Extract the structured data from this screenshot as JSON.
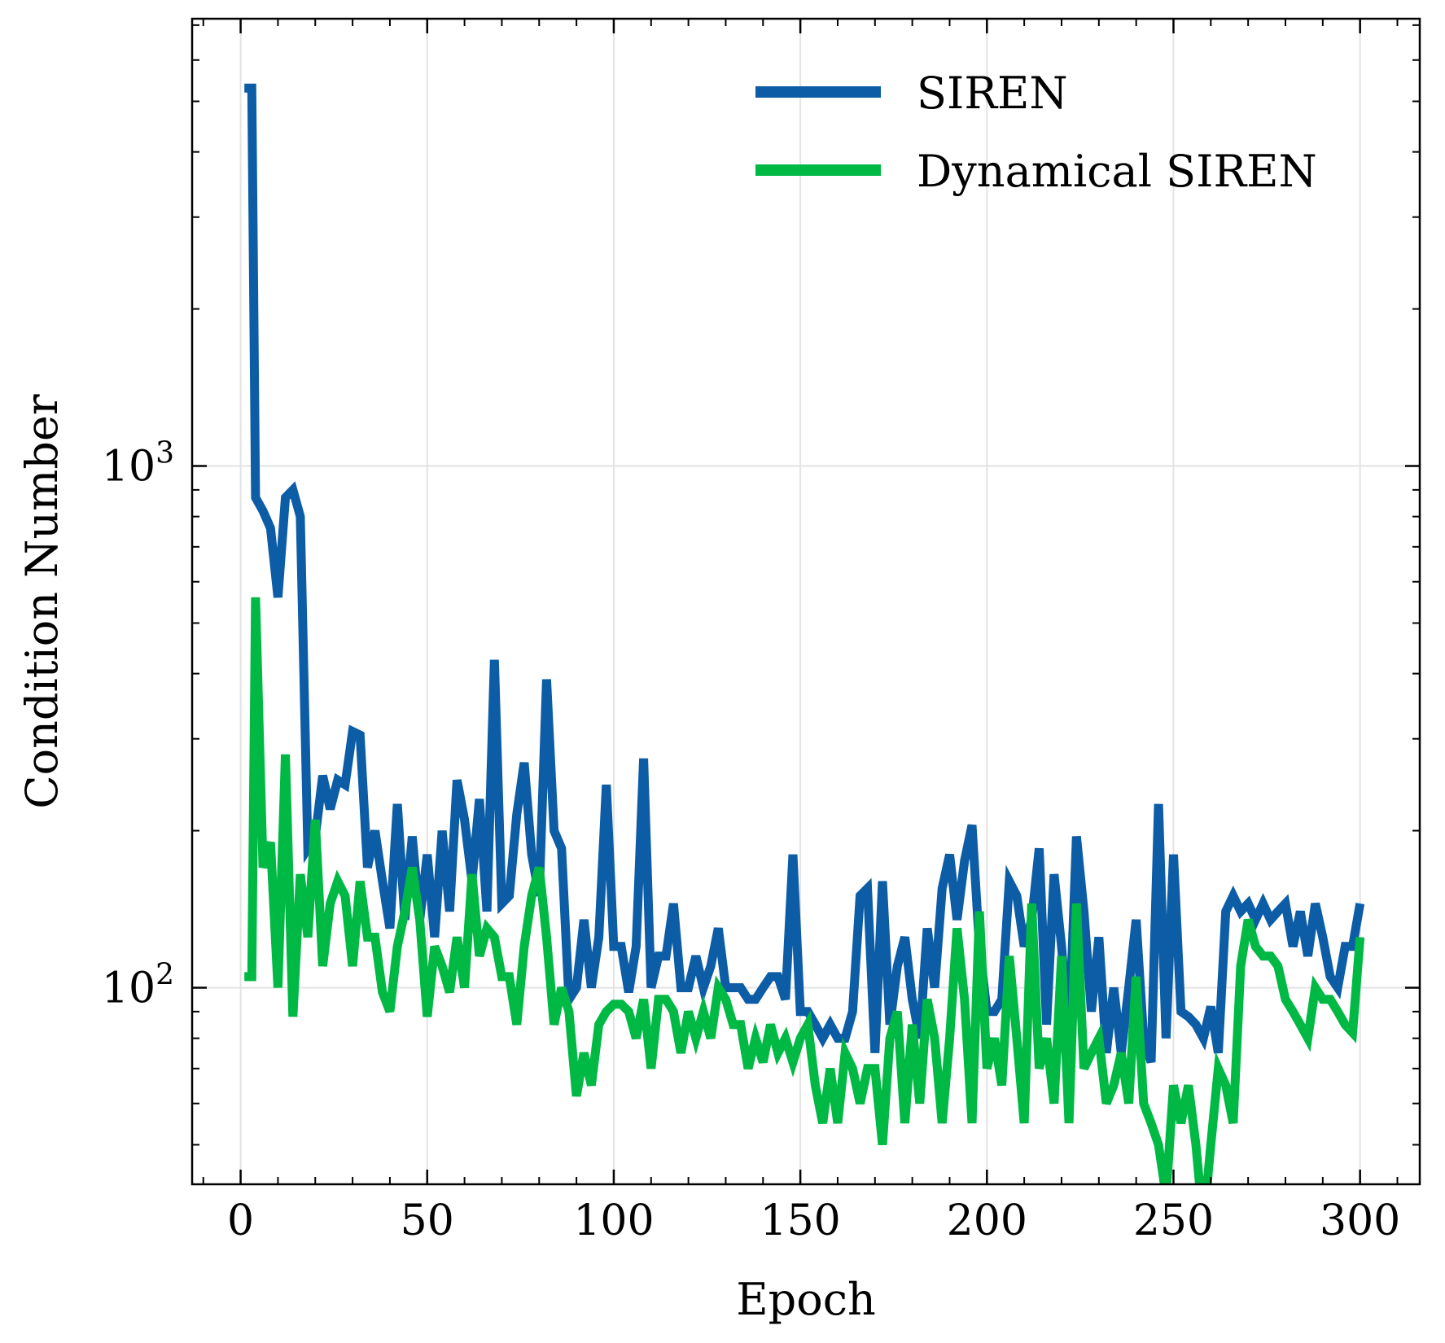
{
  "chart_data": {
    "type": "line",
    "title": "",
    "xlabel": "Epoch",
    "ylabel": "Condition Number",
    "yscale": "log",
    "xlim": [
      -13,
      316
    ],
    "ylim": [
      42,
      7200
    ],
    "grid": true,
    "legend_position": "top-right",
    "x_ticks": [
      0,
      50,
      100,
      150,
      200,
      250,
      300
    ],
    "x_tick_labels": [
      "0",
      "50",
      "100",
      "150",
      "200",
      "250",
      "300"
    ],
    "y_ticks": [
      100,
      1000
    ],
    "y_tick_labels": [
      {
        "base": "10",
        "exp": "2"
      },
      {
        "base": "10",
        "exp": "3"
      }
    ],
    "series": [
      {
        "name": "SIREN",
        "color": "#0c5da5",
        "x": [
          1,
          3,
          4,
          6,
          8,
          10,
          12,
          14,
          16,
          18,
          20,
          22,
          24,
          26,
          28,
          30,
          32,
          34,
          36,
          38,
          40,
          42,
          44,
          46,
          48,
          50,
          52,
          54,
          56,
          58,
          60,
          62,
          64,
          66,
          68,
          70,
          72,
          74,
          76,
          78,
          80,
          82,
          84,
          86,
          88,
          90,
          92,
          94,
          96,
          98,
          100,
          102,
          104,
          106,
          108,
          110,
          112,
          114,
          116,
          118,
          120,
          122,
          124,
          126,
          128,
          130,
          132,
          134,
          136,
          138,
          140,
          142,
          144,
          146,
          148,
          150,
          152,
          154,
          156,
          158,
          160,
          162,
          164,
          166,
          168,
          170,
          172,
          174,
          176,
          178,
          180,
          182,
          184,
          186,
          188,
          190,
          192,
          194,
          196,
          198,
          200,
          202,
          204,
          206,
          208,
          210,
          212,
          214,
          216,
          218,
          220,
          222,
          224,
          226,
          228,
          230,
          232,
          234,
          236,
          238,
          240,
          242,
          244,
          246,
          248,
          250,
          252,
          254,
          256,
          258,
          260,
          262,
          264,
          266,
          268,
          270,
          272,
          274,
          276,
          278,
          280,
          282,
          284,
          286,
          288,
          290,
          292,
          294,
          296,
          298,
          300
        ],
        "y": [
          5300,
          5300,
          870,
          820,
          760,
          560,
          870,
          900,
          800,
          185,
          195,
          255,
          220,
          250,
          245,
          310,
          305,
          170,
          200,
          160,
          130,
          225,
          135,
          195,
          135,
          180,
          125,
          200,
          140,
          250,
          210,
          160,
          230,
          140,
          425,
          145,
          150,
          215,
          270,
          180,
          150,
          390,
          200,
          185,
          95,
          100,
          135,
          100,
          125,
          245,
          120,
          120,
          98,
          120,
          275,
          100,
          115,
          115,
          145,
          100,
          100,
          115,
          100,
          110,
          130,
          100,
          100,
          100,
          95,
          95,
          100,
          105,
          105,
          95,
          180,
          90,
          90,
          85,
          80,
          85,
          80,
          80,
          90,
          150,
          155,
          75,
          160,
          85,
          110,
          125,
          95,
          80,
          130,
          100,
          155,
          180,
          135,
          175,
          205,
          120,
          90,
          90,
          95,
          160,
          150,
          120,
          135,
          185,
          85,
          165,
          120,
          80,
          195,
          140,
          90,
          125,
          75,
          100,
          75,
          100,
          135,
          80,
          72,
          225,
          80,
          180,
          90,
          88,
          85,
          80,
          92,
          75,
          140,
          150,
          140,
          145,
          135,
          145,
          135,
          140,
          145,
          120,
          140,
          115,
          145,
          125,
          105,
          100,
          120,
          120,
          145
        ]
      },
      {
        "name": "Dynamical SIREN",
        "color": "#00b945",
        "x": [
          1,
          3,
          4,
          6,
          8,
          10,
          12,
          14,
          16,
          18,
          20,
          22,
          24,
          26,
          28,
          30,
          32,
          34,
          36,
          38,
          40,
          42,
          44,
          46,
          48,
          50,
          52,
          54,
          56,
          58,
          60,
          62,
          64,
          66,
          68,
          70,
          72,
          74,
          76,
          78,
          80,
          82,
          84,
          86,
          88,
          90,
          92,
          94,
          96,
          98,
          100,
          102,
          104,
          106,
          108,
          110,
          112,
          114,
          116,
          118,
          120,
          122,
          124,
          126,
          128,
          130,
          132,
          134,
          136,
          138,
          140,
          142,
          144,
          146,
          148,
          150,
          152,
          154,
          156,
          158,
          160,
          162,
          164,
          166,
          168,
          170,
          172,
          174,
          176,
          178,
          180,
          182,
          184,
          186,
          188,
          190,
          192,
          194,
          196,
          198,
          200,
          202,
          204,
          206,
          208,
          210,
          212,
          214,
          216,
          218,
          220,
          222,
          224,
          226,
          228,
          230,
          232,
          234,
          236,
          238,
          240,
          242,
          244,
          246,
          248,
          250,
          252,
          254,
          256,
          258,
          260,
          262,
          264,
          266,
          268,
          270,
          272,
          274,
          276,
          278,
          280,
          282,
          284,
          286,
          288,
          290,
          292,
          294,
          296,
          298,
          300
        ],
        "y": [
          105,
          105,
          560,
          170,
          190,
          100,
          280,
          88,
          165,
          125,
          210,
          110,
          145,
          160,
          150,
          110,
          160,
          125,
          125,
          98,
          90,
          120,
          140,
          170,
          135,
          88,
          120,
          110,
          98,
          125,
          100,
          165,
          115,
          130,
          125,
          105,
          105,
          85,
          120,
          150,
          170,
          125,
          85,
          100,
          90,
          62,
          75,
          65,
          85,
          90,
          93,
          93,
          90,
          80,
          95,
          70,
          95,
          95,
          90,
          75,
          90,
          80,
          90,
          80,
          100,
          95,
          85,
          85,
          70,
          80,
          72,
          85,
          75,
          80,
          72,
          80,
          85,
          65,
          55,
          70,
          55,
          75,
          70,
          60,
          70,
          70,
          50,
          80,
          90,
          55,
          85,
          60,
          95,
          80,
          55,
          80,
          130,
          95,
          55,
          140,
          70,
          80,
          65,
          115,
          80,
          55,
          145,
          70,
          80,
          60,
          115,
          55,
          145,
          70,
          75,
          80,
          60,
          65,
          75,
          60,
          105,
          60,
          55,
          50,
          40,
          65,
          55,
          65,
          50,
          35,
          50,
          70,
          65,
          55,
          110,
          135,
          120,
          115,
          115,
          110,
          95,
          90,
          85,
          80,
          100,
          95,
          95,
          90,
          85,
          82,
          125
        ]
      }
    ]
  }
}
